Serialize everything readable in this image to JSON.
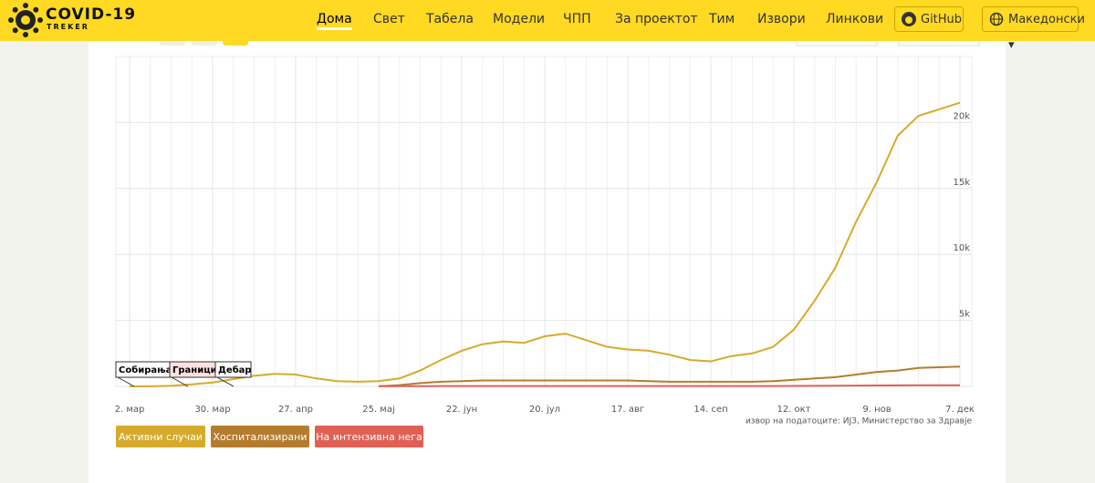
{
  "header": {
    "logo_title": "COVID-19",
    "logo_subtitle": "TREKER",
    "nav": [
      "Дома",
      "Свет",
      "Табела",
      "Модели",
      "ЧПП",
      "За проектот",
      "Тим",
      "Извори",
      "Линкови"
    ],
    "active_nav": 0,
    "github": "GitHub",
    "language": "Македонски"
  },
  "chart_data": {
    "type": "line",
    "categories": [
      "2. мар",
      null,
      null,
      null,
      "30. мар",
      null,
      null,
      null,
      "27. апр",
      null,
      null,
      null,
      "25. мај",
      null,
      null,
      null,
      "22. јун",
      null,
      null,
      null,
      "20. јул",
      null,
      null,
      null,
      "17. авг",
      null,
      null,
      null,
      "14. сеп",
      null,
      null,
      null,
      "12. окт",
      null,
      null,
      null,
      "9. нов",
      null,
      null,
      null,
      "7. дек"
    ],
    "series": [
      {
        "name": "Активни случаи",
        "color": "#d6aa2b",
        "values": [
          0,
          5,
          40,
          150,
          300,
          550,
          800,
          950,
          900,
          600,
          400,
          350,
          400,
          600,
          1200,
          2000,
          2700,
          3200,
          3400,
          3300,
          3800,
          4000,
          3500,
          3000,
          2800,
          2700,
          2400,
          2000,
          1900,
          2300,
          2500,
          3000,
          4300,
          6500,
          9000,
          12500,
          15500,
          19000,
          20500,
          21000,
          21500
        ]
      },
      {
        "name": "Хоспитализирани",
        "color": "#b57c2e",
        "values": [
          null,
          null,
          null,
          null,
          null,
          null,
          null,
          null,
          null,
          null,
          null,
          null,
          10,
          100,
          250,
          350,
          400,
          450,
          450,
          450,
          450,
          450,
          450,
          450,
          450,
          400,
          350,
          350,
          350,
          350,
          350,
          400,
          500,
          600,
          700,
          900,
          1100,
          1200,
          1400,
          1450,
          1500
        ]
      },
      {
        "name": "На интензивна нега",
        "color": "#e06055",
        "values": [
          null,
          null,
          null,
          null,
          null,
          null,
          null,
          null,
          null,
          null,
          null,
          null,
          10,
          15,
          20,
          25,
          30,
          30,
          30,
          30,
          30,
          30,
          30,
          30,
          30,
          25,
          25,
          25,
          25,
          25,
          25,
          30,
          35,
          40,
          50,
          60,
          70,
          75,
          80,
          80,
          80
        ]
      }
    ],
    "ylim": [
      0,
      25000
    ],
    "yticks": [
      0,
      {
        "value": 5000,
        "label": "5k"
      },
      {
        "value": 10000,
        "label": "10k"
      },
      {
        "value": 15000,
        "label": "15k"
      },
      {
        "value": 20000,
        "label": "20k"
      }
    ],
    "grid": true,
    "annotations": [
      "Собирања",
      "Граници",
      "Дебар"
    ],
    "source": "извор на податоците: ИЈЗ, Министерство за Здравје"
  }
}
